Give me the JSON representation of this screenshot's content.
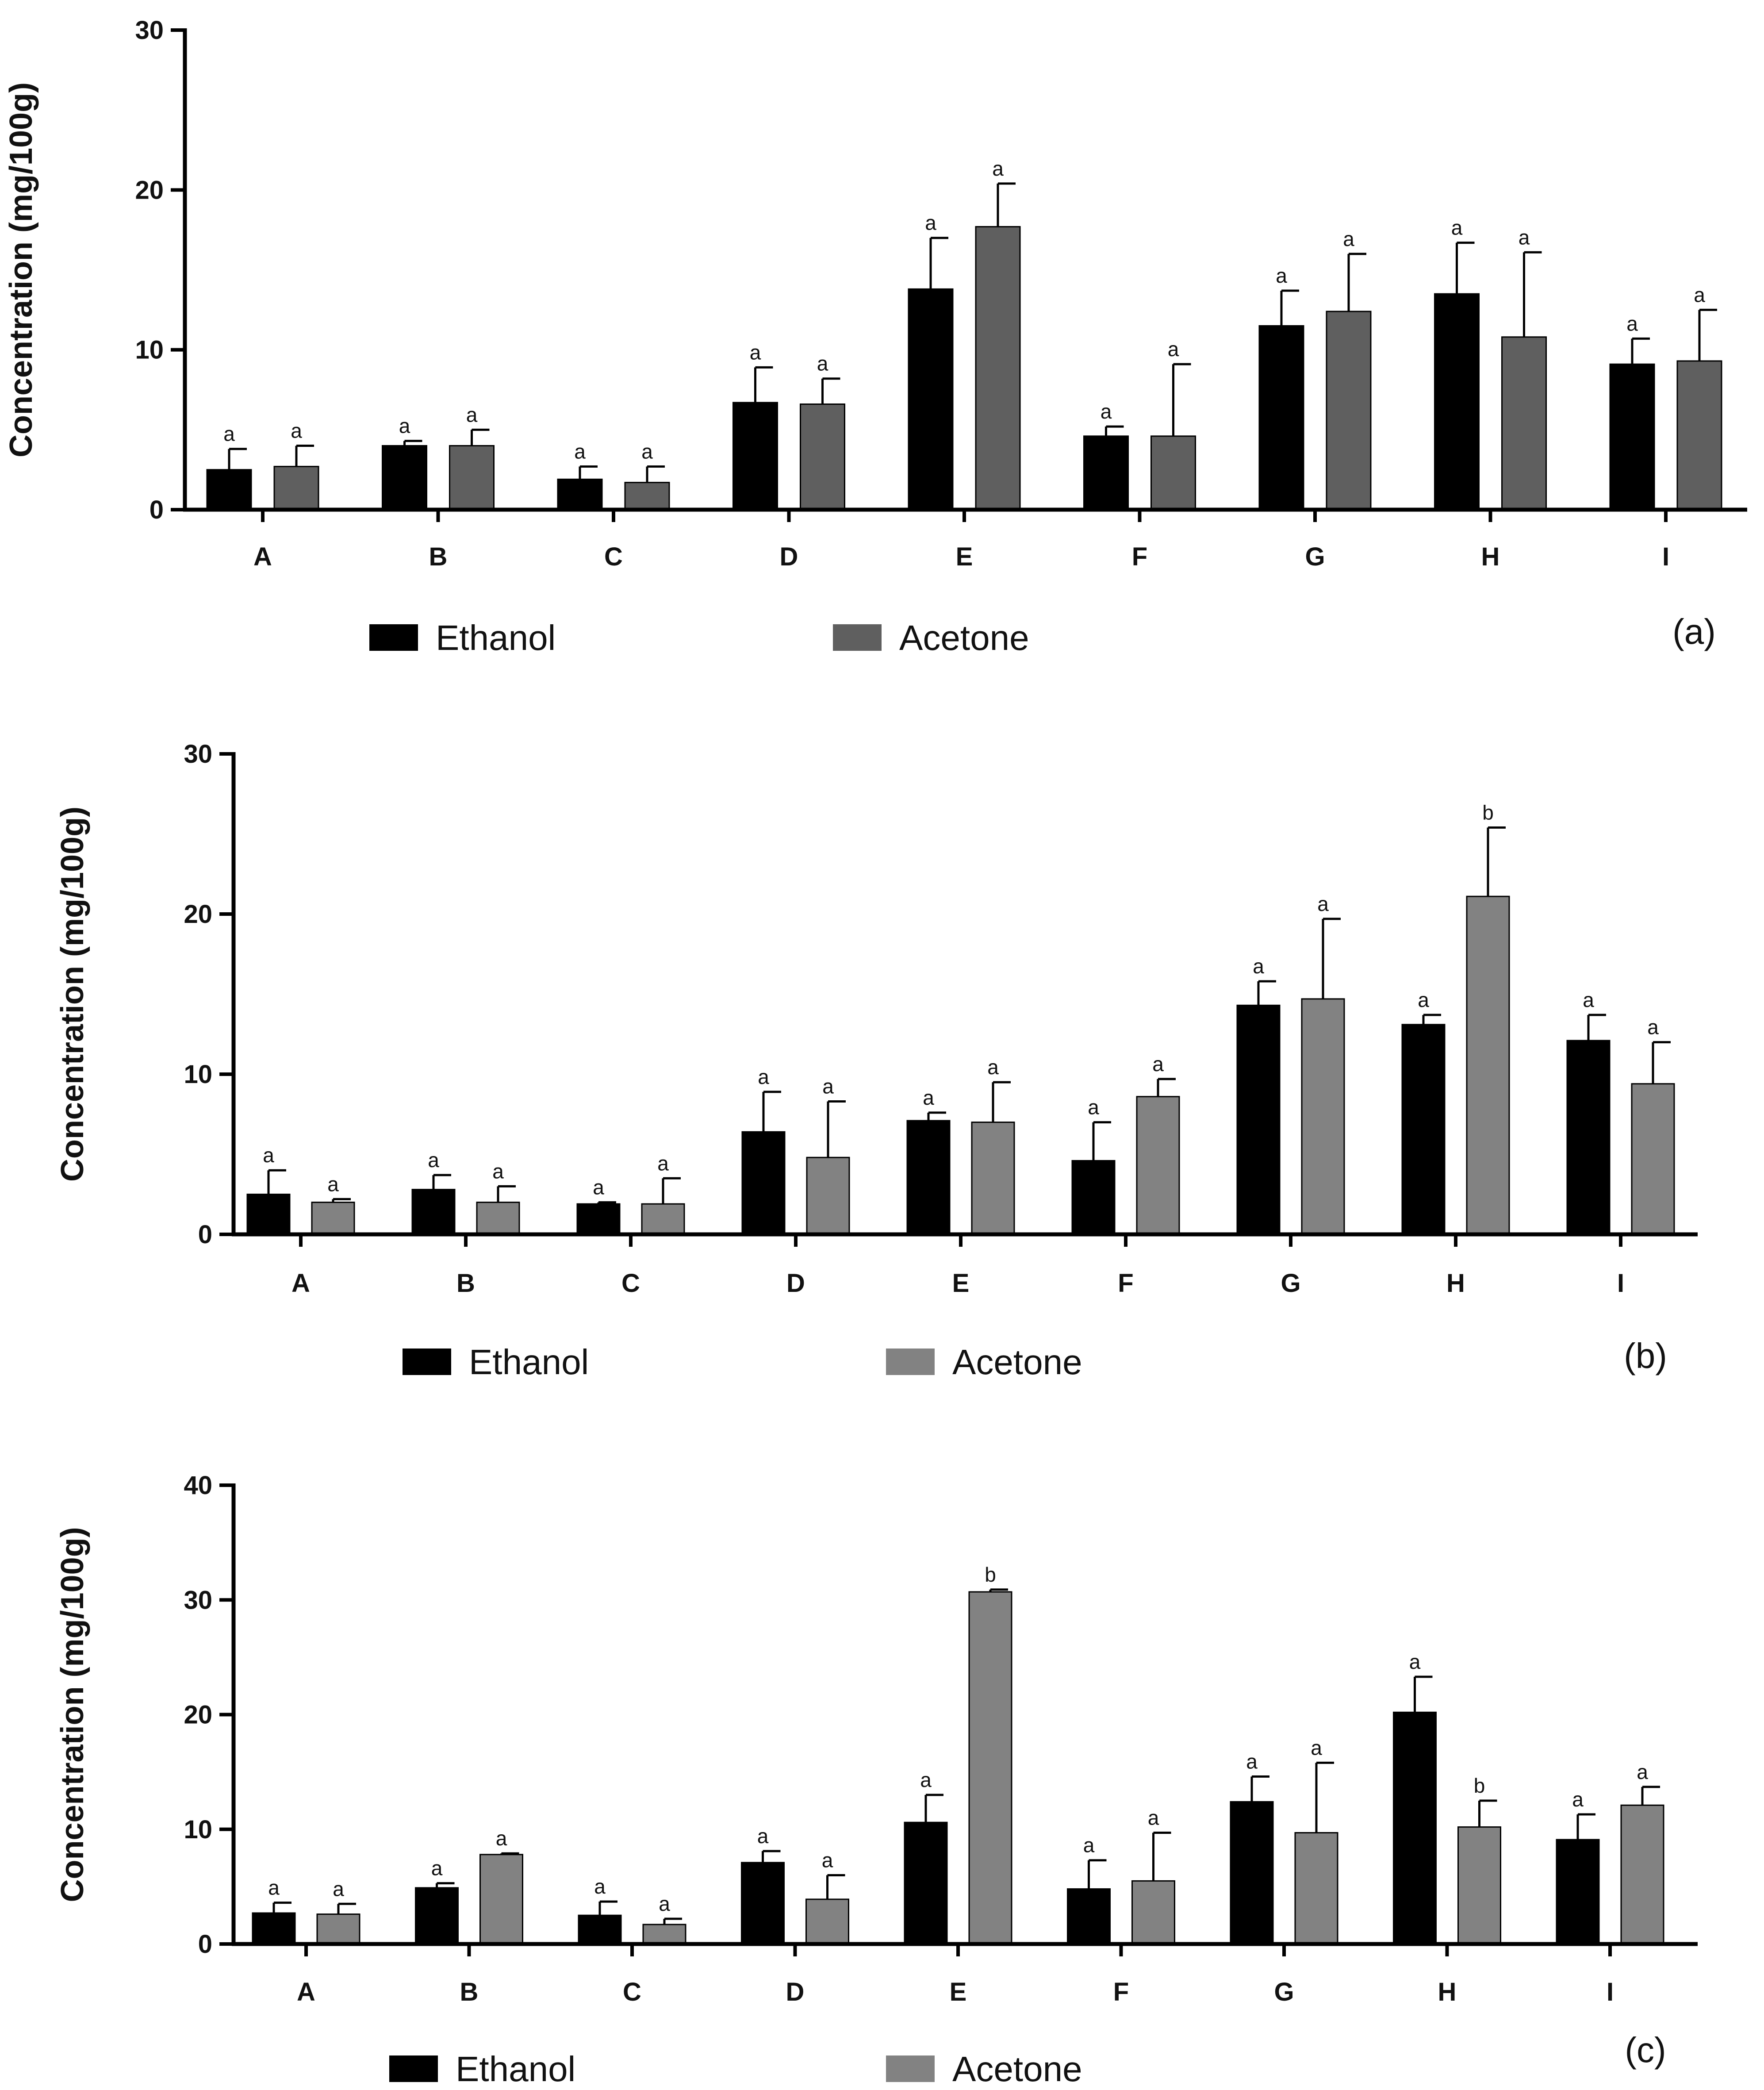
{
  "chart_data": [
    {
      "type": "bar",
      "panel_label": "(a)",
      "ylabel": "Concentration (mg/100g)",
      "xlabel": "",
      "ylim": [
        0,
        30
      ],
      "yticks": [
        0,
        10,
        20,
        30
      ],
      "categories": [
        "A",
        "B",
        "C",
        "D",
        "E",
        "F",
        "G",
        "H",
        "I"
      ],
      "legend_position": "bottom",
      "series": [
        {
          "name": "Ethanol",
          "color": "#000000",
          "values": [
            2.5,
            4.0,
            1.9,
            6.7,
            13.8,
            4.6,
            11.5,
            13.5,
            9.1
          ],
          "errors": [
            1.3,
            0.3,
            0.8,
            2.2,
            3.2,
            0.6,
            2.2,
            3.2,
            1.6
          ],
          "labels": [
            "a",
            "a",
            "a",
            "a",
            "a",
            "a",
            "a",
            "a",
            "a"
          ]
        },
        {
          "name": "Acetone",
          "color": "#5f5f5f",
          "values": [
            2.7,
            4.0,
            1.7,
            6.6,
            17.7,
            4.6,
            12.4,
            10.8,
            9.3
          ],
          "errors": [
            1.3,
            1.0,
            1.0,
            1.6,
            2.7,
            4.5,
            3.6,
            5.3,
            3.2
          ],
          "labels": [
            "a",
            "a",
            "a",
            "a",
            "a",
            "a",
            "a",
            "a",
            "a"
          ]
        }
      ]
    },
    {
      "type": "bar",
      "panel_label": "(b)",
      "ylabel": "Concentration (mg/100g)",
      "xlabel": "",
      "ylim": [
        0,
        30
      ],
      "yticks": [
        0,
        10,
        20,
        30
      ],
      "categories": [
        "A",
        "B",
        "C",
        "D",
        "E",
        "F",
        "G",
        "H",
        "I"
      ],
      "legend_position": "bottom",
      "series": [
        {
          "name": "Ethanol",
          "color": "#000000",
          "values": [
            2.5,
            2.8,
            1.9,
            6.4,
            7.1,
            4.6,
            14.3,
            13.1,
            12.1
          ],
          "errors": [
            1.5,
            0.9,
            0.1,
            2.5,
            0.5,
            2.4,
            1.5,
            0.6,
            1.6
          ],
          "labels": [
            "a",
            "a",
            "a",
            "a",
            "a",
            "a",
            "a",
            "a",
            "a"
          ]
        },
        {
          "name": "Acetone",
          "color": "#828282",
          "values": [
            2.0,
            2.0,
            1.9,
            4.8,
            7.0,
            8.6,
            14.7,
            21.1,
            9.4
          ],
          "errors": [
            0.2,
            1.0,
            1.6,
            3.5,
            2.5,
            1.1,
            5.0,
            4.3,
            2.6
          ],
          "labels": [
            "a",
            "a",
            "a",
            "a",
            "a",
            "a",
            "a",
            "b",
            "a"
          ]
        }
      ]
    },
    {
      "type": "bar",
      "panel_label": "(c)",
      "ylabel": "Concentration (mg/100g)",
      "xlabel": "",
      "ylim": [
        0,
        40
      ],
      "yticks": [
        0,
        10,
        20,
        30,
        40
      ],
      "categories": [
        "A",
        "B",
        "C",
        "D",
        "E",
        "F",
        "G",
        "H",
        "I"
      ],
      "legend_position": "bottom",
      "series": [
        {
          "name": "Ethanol",
          "color": "#000000",
          "values": [
            2.7,
            4.9,
            2.5,
            7.1,
            10.6,
            4.8,
            12.4,
            20.2,
            9.1
          ],
          "errors": [
            0.9,
            0.4,
            1.2,
            1.0,
            2.4,
            2.5,
            2.2,
            3.1,
            2.2
          ],
          "labels": [
            "a",
            "a",
            "a",
            "a",
            "a",
            "a",
            "a",
            "a",
            "a"
          ]
        },
        {
          "name": "Acetone",
          "color": "#828282",
          "values": [
            2.6,
            7.8,
            1.7,
            3.9,
            30.7,
            5.5,
            9.7,
            10.2,
            12.1
          ],
          "errors": [
            0.9,
            0.1,
            0.5,
            2.1,
            0.2,
            4.2,
            6.1,
            2.3,
            1.6
          ],
          "labels": [
            "a",
            "a",
            "a",
            "a",
            "b",
            "a",
            "a",
            "b",
            "a"
          ]
        }
      ]
    }
  ]
}
